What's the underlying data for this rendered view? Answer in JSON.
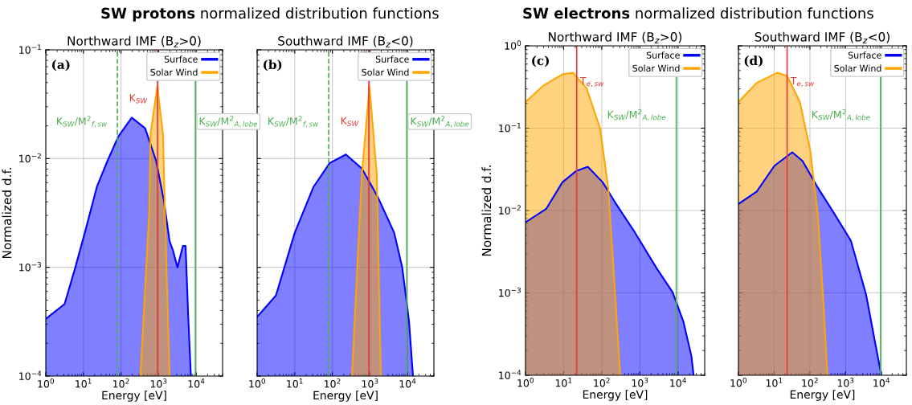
{
  "chart_data": [
    {
      "type": "area",
      "title": "Northward IMF (B$_{z}$>0)",
      "xlabel": "Energy [eV]",
      "ylabel": "Normalized d.f.",
      "annotations": [
        "(a)",
        "SW protons",
        "normalized distribution functions"
      ],
      "log": "xy",
      "grid": true,
      "legend": "top right",
      "xlim": [
        1,
        50000
      ],
      "xticks": [
        {
          "value": 1,
          "label": "10$^{0}$"
        },
        {
          "value": 10,
          "label": "10$^{1}$"
        },
        {
          "value": 100,
          "label": "10$^{2}$"
        },
        {
          "value": 1000,
          "label": "10$^{3}$"
        },
        {
          "value": 10000,
          "label": "10$^{4}$"
        }
      ],
      "ylim": [
        0.0001,
        0.1
      ],
      "yticks": [
        {
          "value": 0.0001,
          "label": "10$^{−4}$"
        },
        {
          "value": 0.001,
          "label": "10$^{−3}$"
        },
        {
          "value": 0.01,
          "label": "10$^{−2}$"
        },
        {
          "value": 0.1,
          "label": "10$^{−1}$"
        }
      ],
      "series": [
        {
          "name": "Surface",
          "color": "#0000ff",
          "x": [
            1,
            3.16,
            6.1,
            10.9,
            22.8,
            44,
            85,
            193,
            437,
            851,
            1380,
            1950,
            2450,
            3160,
            4400,
            5200,
            6100,
            7200
          ],
          "values": [
            0.000335,
            0.00046,
            0.001,
            0.00208,
            0.0055,
            0.0096,
            0.016,
            0.0238,
            0.019,
            0.0096,
            0.0041,
            0.00175,
            0.0014,
            0.001,
            0.00157,
            0.00157,
            0.00036,
            0.0001
          ]
        },
        {
          "name": "Solar Wind",
          "color": "#ffa500",
          "x": [
            327,
            560,
            610,
            920,
            1300,
            1510,
            1950
          ],
          "values": [
            0.0001,
            0.0031,
            0.017,
            0.046,
            0.017,
            0.0023,
            0.0001
          ]
        }
      ],
      "ref_lines": [
        {
          "axis": "x",
          "value": 80,
          "label": "K$_{SW}$/M$^{2}$$_{f,sw}$",
          "color": "#4caf50",
          "line_style": "dashed"
        },
        {
          "axis": "x",
          "value": 930,
          "label": "K$_{SW}$",
          "color": "#e53935",
          "line_style": "solid"
        },
        {
          "axis": "x",
          "value": 9500,
          "label": "K$_{SW}$/M$^{2}$$_{A,lobe}$",
          "color": "#4caf50",
          "line_style": "solid"
        }
      ]
    },
    {
      "type": "area",
      "title": "Southward IMF (B$_{z}$<0)",
      "xlabel": "Energy [eV]",
      "annotations": [
        "(b)"
      ],
      "log": "xy",
      "grid": true,
      "legend": "top right",
      "tick_labels": "x",
      "xlim": [
        1,
        50000
      ],
      "xticks": [
        {
          "value": 1,
          "label": "10$^{0}$"
        },
        {
          "value": 10,
          "label": "10$^{1}$"
        },
        {
          "value": 100,
          "label": "10$^{2}$"
        },
        {
          "value": 1000,
          "label": "10$^{3}$"
        },
        {
          "value": 10000,
          "label": "10$^{4}$"
        }
      ],
      "ylim": [
        0.0001,
        0.1
      ],
      "yticks": [
        {
          "value": 0.0001,
          "label": null
        },
        {
          "value": 0.001,
          "label": null
        },
        {
          "value": 0.01,
          "label": null
        },
        {
          "value": 0.1,
          "label": null
        }
      ],
      "series": [
        {
          "name": "Surface",
          "color": "#0000ff",
          "x": [
            1,
            3.16,
            10,
            31.6,
            85,
            229,
            610,
            1630,
            4400,
            7200,
            10900,
            13900
          ],
          "values": [
            0.00035,
            0.00055,
            0.00208,
            0.0055,
            0.0091,
            0.0109,
            0.0081,
            0.0044,
            0.00208,
            0.001,
            0.00032,
            0.0001
          ]
        },
        {
          "name": "Solar Wind",
          "color": "#ffa500",
          "x": [
            331,
            610,
            970,
            1510,
            1950
          ],
          "values": [
            0.0001,
            0.0072,
            0.046,
            0.0072,
            0.0001
          ]
        }
      ],
      "ref_lines": [
        {
          "axis": "x",
          "value": 80,
          "label": "K$_{SW}$/M$^{2}$$_{f,sw}$",
          "color": "#4caf50",
          "line_style": "dashed"
        },
        {
          "axis": "x",
          "value": 930,
          "label": "K$_{SW}$",
          "color": "#e53935",
          "line_style": "solid"
        },
        {
          "axis": "x",
          "value": 9500,
          "label": "K$_{SW}$/M$^{2}$$_{A,lobe}$",
          "color": "#4caf50",
          "line_style": "solid"
        }
      ]
    },
    {
      "type": "area",
      "title": "Northward IMF (B$_{z}$>0)",
      "xlabel": "Energy [eV]",
      "ylabel": "Normalized d.f.",
      "annotations": [
        "(c)",
        "SW electrons",
        "normalized distribution functions"
      ],
      "log": "xy",
      "grid": true,
      "legend": "top right",
      "xlim": [
        1,
        50000
      ],
      "xticks": [
        {
          "value": 1,
          "label": "10$^{0}$"
        },
        {
          "value": 10,
          "label": "10$^{1}$"
        },
        {
          "value": 100,
          "label": "10$^{2}$"
        },
        {
          "value": 1000,
          "label": "10$^{3}$"
        },
        {
          "value": 10000,
          "label": "10$^{4}$"
        }
      ],
      "ylim": [
        0.0001,
        1
      ],
      "yticks": [
        {
          "value": 0.0001,
          "label": "10$^{−4}$"
        },
        {
          "value": 0.001,
          "label": "10$^{−3}$"
        },
        {
          "value": 0.01,
          "label": "10$^{−2}$"
        },
        {
          "value": 0.1,
          "label": "10$^{−1}$"
        },
        {
          "value": 1,
          "label": "10$^{0}$"
        }
      ],
      "series": [
        {
          "name": "Surface",
          "color": "#0000ff",
          "x": [
            1,
            3.5,
            9.25,
            20.9,
            43,
            106,
            238,
            743,
            2730,
            7200,
            13800,
            22500,
            25600
          ],
          "values": [
            0.0072,
            0.0105,
            0.022,
            0.03,
            0.034,
            0.022,
            0.012,
            0.0054,
            0.002,
            0.00102,
            0.00045,
            0.00017,
            0.0001
          ]
        },
        {
          "name": "Solar Wind",
          "color": "#ffa500",
          "x": [
            1,
            2.97,
            9.25,
            17.7,
            40,
            90,
            147,
            203,
            304
          ],
          "values": [
            0.207,
            0.33,
            0.45,
            0.47,
            0.305,
            0.1,
            0.019,
            0.002,
            0.0001
          ]
        }
      ],
      "ref_lines": [
        {
          "axis": "x",
          "value": 22,
          "label": "T$_{e,sw}$",
          "color": "#e53935",
          "line_style": "solid"
        },
        {
          "axis": "x",
          "value": 9000,
          "label": "K$_{SW}$/M$^{2}$$_{A,lobe}$",
          "color": "#4caf50",
          "line_style": "solid"
        }
      ]
    },
    {
      "type": "area",
      "title": "Southward IMF (B$_{z}$<0)",
      "xlabel": "Energy [eV]",
      "annotations": [
        "(d)"
      ],
      "log": "xy",
      "grid": true,
      "legend": "top right",
      "tick_labels": "x",
      "xlim": [
        1,
        50000
      ],
      "xticks": [
        {
          "value": 1,
          "label": "10$^{0}$"
        },
        {
          "value": 10,
          "label": "10$^{1}$"
        },
        {
          "value": 100,
          "label": "10$^{2}$"
        },
        {
          "value": 1000,
          "label": "10$^{3}$"
        },
        {
          "value": 10000,
          "label": "10$^{4}$"
        }
      ],
      "ylim": [
        0.0001,
        1
      ],
      "yticks": [
        {
          "value": 0.0001,
          "label": null
        },
        {
          "value": 0.001,
          "label": null
        },
        {
          "value": 0.01,
          "label": null
        },
        {
          "value": 0.1,
          "label": null
        },
        {
          "value": 1,
          "label": null
        }
      ],
      "series": [
        {
          "name": "Surface",
          "color": "#0000ff",
          "x": [
            1,
            3.25,
            10.2,
            32,
            62,
            166,
            444,
            1400,
            3740,
            7200,
            10000
          ],
          "values": [
            0.012,
            0.017,
            0.035,
            0.051,
            0.04,
            0.019,
            0.0097,
            0.0043,
            0.00095,
            0.00021,
            0.0001
          ]
        },
        {
          "name": "Solar Wind",
          "color": "#ffa500",
          "x": [
            1,
            3.25,
            12.1,
            23,
            52,
            102,
            166,
            231,
            310
          ],
          "values": [
            0.207,
            0.355,
            0.47,
            0.43,
            0.21,
            0.054,
            0.009,
            0.00095,
            0.0001
          ]
        }
      ],
      "ref_lines": [
        {
          "axis": "x",
          "value": 23,
          "label": "T$_{e,sw}$",
          "color": "#e53935",
          "line_style": "solid"
        },
        {
          "axis": "x",
          "value": 9500,
          "label": "K$_{SW}$/M$^{2}$$_{A,lobe}$",
          "color": "#4caf50",
          "line_style": "solid"
        }
      ]
    }
  ]
}
